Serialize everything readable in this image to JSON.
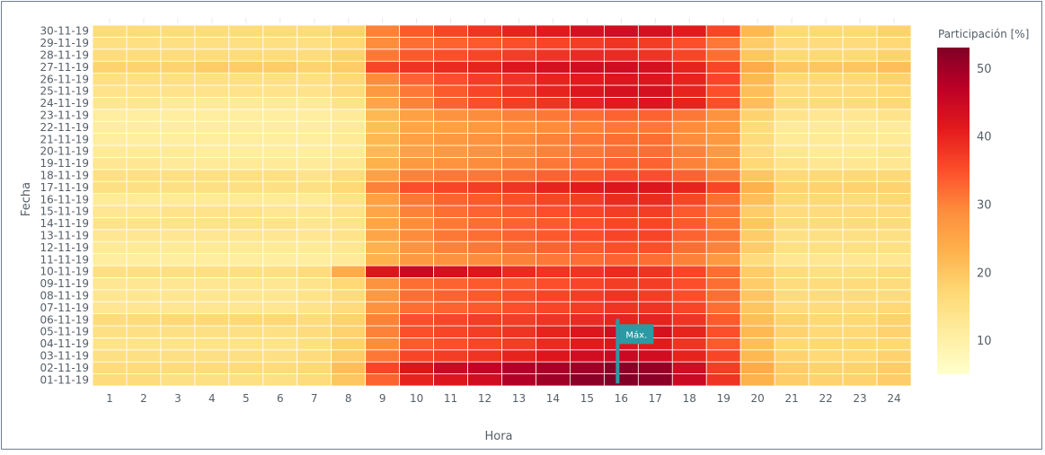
{
  "chart_data": {
    "type": "heatmap",
    "title": "",
    "xlabel": "Hora",
    "ylabel": "Fecha",
    "x": [
      "1",
      "2",
      "3",
      "4",
      "5",
      "6",
      "7",
      "8",
      "9",
      "10",
      "11",
      "12",
      "13",
      "14",
      "15",
      "16",
      "17",
      "18",
      "19",
      "20",
      "21",
      "22",
      "23",
      "24"
    ],
    "y": [
      "01-11-19",
      "02-11-19",
      "03-11-19",
      "04-11-19",
      "05-11-19",
      "06-11-19",
      "07-11-19",
      "08-11-19",
      "09-11-19",
      "10-11-19",
      "11-11-19",
      "12-11-19",
      "13-11-19",
      "14-11-19",
      "15-11-19",
      "16-11-19",
      "17-11-19",
      "18-11-19",
      "19-11-19",
      "20-11-19",
      "21-11-19",
      "22-11-19",
      "23-11-19",
      "24-11-19",
      "25-11-19",
      "26-11-19",
      "27-11-19",
      "28-11-19",
      "29-11-19",
      "30-11-19"
    ],
    "values": [
      [
        16,
        16,
        15,
        15,
        15,
        15,
        16,
        20,
        33,
        40,
        42,
        44,
        48,
        50,
        52,
        53,
        52,
        45,
        38,
        23,
        19,
        18,
        18,
        19
      ],
      [
        16,
        16,
        16,
        16,
        16,
        16,
        17,
        21,
        36,
        42,
        45,
        46,
        48,
        49,
        50,
        52,
        51,
        44,
        37,
        24,
        19,
        18,
        18,
        19
      ],
      [
        15,
        15,
        15,
        15,
        15,
        15,
        16,
        19,
        31,
        36,
        37,
        38,
        40,
        42,
        44,
        45,
        44,
        40,
        36,
        22,
        18,
        17,
        17,
        18
      ],
      [
        14,
        14,
        14,
        14,
        14,
        14,
        15,
        18,
        29,
        34,
        35,
        36,
        37,
        39,
        41,
        42,
        41,
        38,
        34,
        21,
        17,
        17,
        17,
        17
      ],
      [
        15,
        15,
        15,
        15,
        15,
        15,
        16,
        18,
        30,
        35,
        36,
        37,
        38,
        40,
        42,
        44,
        43,
        40,
        35,
        22,
        18,
        17,
        17,
        18
      ],
      [
        16,
        16,
        17,
        17,
        17,
        17,
        16,
        18,
        30,
        35,
        36,
        37,
        37,
        38,
        39,
        40,
        40,
        38,
        34,
        21,
        18,
        17,
        17,
        18
      ],
      [
        13,
        13,
        13,
        13,
        13,
        13,
        14,
        16,
        28,
        32,
        33,
        34,
        35,
        36,
        37,
        38,
        38,
        36,
        32,
        20,
        16,
        16,
        16,
        17
      ],
      [
        13,
        13,
        13,
        13,
        13,
        13,
        14,
        16,
        27,
        32,
        33,
        34,
        35,
        36,
        37,
        38,
        37,
        35,
        32,
        20,
        16,
        16,
        16,
        16
      ],
      [
        13,
        13,
        13,
        13,
        13,
        13,
        14,
        17,
        28,
        32,
        33,
        34,
        34,
        35,
        36,
        37,
        37,
        35,
        32,
        19,
        16,
        16,
        16,
        16
      ],
      [
        15,
        15,
        15,
        15,
        15,
        15,
        16,
        24,
        42,
        45,
        43,
        42,
        39,
        38,
        38,
        39,
        38,
        36,
        32,
        19,
        16,
        15,
        15,
        16
      ],
      [
        11,
        11,
        11,
        11,
        11,
        11,
        11,
        12,
        23,
        27,
        28,
        29,
        30,
        31,
        32,
        33,
        32,
        30,
        27,
        16,
        13,
        13,
        13,
        13
      ],
      [
        12,
        12,
        12,
        12,
        12,
        12,
        12,
        13,
        23,
        28,
        30,
        31,
        32,
        33,
        34,
        35,
        35,
        32,
        30,
        19,
        15,
        15,
        15,
        15
      ],
      [
        13,
        13,
        13,
        13,
        13,
        13,
        13,
        14,
        25,
        29,
        31,
        32,
        33,
        34,
        35,
        36,
        36,
        33,
        31,
        19,
        15,
        15,
        15,
        15
      ],
      [
        14,
        14,
        14,
        14,
        14,
        14,
        13,
        14,
        25,
        29,
        31,
        32,
        33,
        34,
        35,
        36,
        36,
        34,
        31,
        20,
        16,
        16,
        16,
        16
      ],
      [
        13,
        13,
        14,
        14,
        14,
        13,
        13,
        14,
        25,
        30,
        32,
        33,
        34,
        35,
        36,
        37,
        37,
        34,
        31,
        19,
        16,
        16,
        16,
        16
      ],
      [
        12,
        12,
        12,
        12,
        12,
        12,
        12,
        14,
        26,
        31,
        33,
        34,
        35,
        36,
        37,
        39,
        39,
        36,
        32,
        21,
        17,
        17,
        16,
        17
      ],
      [
        15,
        15,
        15,
        15,
        15,
        15,
        15,
        17,
        30,
        35,
        36,
        37,
        38,
        40,
        41,
        42,
        42,
        40,
        36,
        23,
        18,
        18,
        18,
        18
      ],
      [
        15,
        15,
        15,
        15,
        15,
        15,
        14,
        16,
        26,
        30,
        31,
        31,
        32,
        33,
        34,
        35,
        35,
        33,
        30,
        20,
        17,
        17,
        17,
        17
      ],
      [
        13,
        13,
        12,
        12,
        12,
        12,
        12,
        13,
        23,
        27,
        28,
        29,
        30,
        31,
        32,
        33,
        33,
        30,
        28,
        17,
        14,
        13,
        13,
        13
      ],
      [
        12,
        12,
        12,
        11,
        11,
        11,
        11,
        12,
        22,
        26,
        27,
        28,
        29,
        30,
        31,
        32,
        32,
        30,
        27,
        16,
        13,
        12,
        12,
        13
      ],
      [
        11,
        11,
        11,
        11,
        11,
        11,
        11,
        12,
        22,
        26,
        27,
        28,
        29,
        30,
        31,
        32,
        32,
        29,
        27,
        16,
        12,
        12,
        12,
        12
      ],
      [
        11,
        11,
        11,
        11,
        11,
        11,
        11,
        12,
        21,
        25,
        26,
        27,
        28,
        29,
        30,
        31,
        31,
        29,
        27,
        16,
        12,
        12,
        12,
        12
      ],
      [
        11,
        11,
        11,
        11,
        11,
        11,
        11,
        12,
        22,
        26,
        28,
        29,
        30,
        31,
        32,
        33,
        33,
        31,
        28,
        18,
        14,
        13,
        13,
        14
      ],
      [
        13,
        13,
        12,
        12,
        12,
        12,
        12,
        14,
        25,
        30,
        33,
        35,
        37,
        38,
        40,
        41,
        42,
        40,
        35,
        21,
        16,
        16,
        16,
        17
      ],
      [
        14,
        14,
        14,
        14,
        14,
        14,
        14,
        16,
        27,
        31,
        34,
        36,
        38,
        40,
        42,
        43,
        43,
        40,
        35,
        21,
        16,
        16,
        16,
        17
      ],
      [
        15,
        15,
        15,
        15,
        15,
        15,
        15,
        17,
        29,
        33,
        35,
        37,
        38,
        40,
        41,
        42,
        42,
        40,
        36,
        22,
        17,
        17,
        17,
        18
      ],
      [
        18,
        18,
        18,
        19,
        19,
        19,
        18,
        19,
        36,
        38,
        39,
        40,
        42,
        43,
        44,
        44,
        43,
        40,
        36,
        24,
        20,
        20,
        20,
        21
      ],
      [
        16,
        16,
        16,
        16,
        16,
        16,
        16,
        18,
        31,
        34,
        35,
        36,
        37,
        38,
        39,
        39,
        38,
        36,
        32,
        20,
        17,
        17,
        17,
        18
      ],
      [
        15,
        15,
        15,
        15,
        15,
        15,
        15,
        17,
        29,
        32,
        33,
        34,
        35,
        36,
        37,
        38,
        37,
        35,
        31,
        19,
        16,
        16,
        16,
        17
      ],
      [
        16,
        16,
        16,
        16,
        16,
        16,
        16,
        18,
        30,
        34,
        36,
        38,
        40,
        41,
        43,
        44,
        43,
        41,
        36,
        22,
        17,
        17,
        17,
        18
      ]
    ],
    "zlim": [
      5,
      53
    ],
    "colorscale": [
      "#ffffcc",
      "#ffeda0",
      "#fed976",
      "#feb24c",
      "#fd8d3c",
      "#fc4e2a",
      "#e31a1c",
      "#bd0026",
      "#800026"
    ],
    "colorbar": {
      "title": "Participación [%]",
      "ticks": [
        10,
        20,
        30,
        40,
        50
      ],
      "tick_labels": [
        "10",
        "20",
        "30",
        "40",
        "50"
      ]
    },
    "annotation": {
      "text": "Máx.",
      "x": "16",
      "y": "01-11-19",
      "marker": "flag",
      "color": "#2b9aa5"
    },
    "legend": "right",
    "grid": false
  }
}
